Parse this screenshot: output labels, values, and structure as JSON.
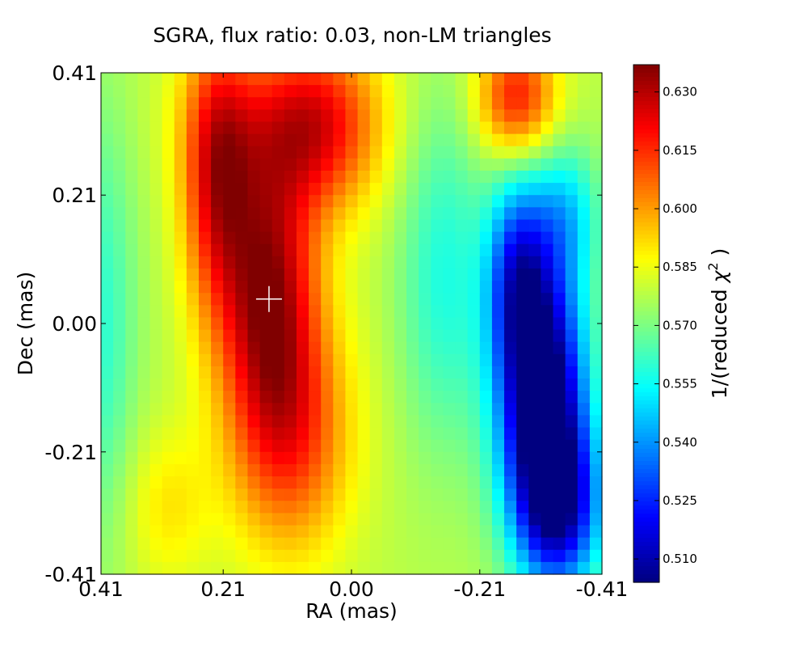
{
  "chart_data": {
    "type": "heatmap",
    "title": "SGRA, flux ratio: 0.03, non-LM triangles",
    "xlabel": "RA (mas)",
    "ylabel": "Dec (mas)",
    "xlim": [
      0.41,
      -0.41
    ],
    "ylim": [
      -0.41,
      0.41
    ],
    "x_ticks": [
      "0.41",
      "0.21",
      "0.00",
      "-0.21",
      "-0.41"
    ],
    "x_tick_values": [
      0.41,
      0.21,
      0.0,
      -0.21,
      -0.41
    ],
    "y_ticks": [
      "0.41",
      "0.21",
      "0.00",
      "-0.21",
      "-0.41"
    ],
    "y_tick_values": [
      0.41,
      0.21,
      0.0,
      -0.21,
      -0.41
    ],
    "colorbar": {
      "label": "1/(reduced χ² )",
      "label_main": "1/(reduced ",
      "label_symbol": "χ",
      "label_power": "2",
      "label_close": " )",
      "range": [
        0.504,
        0.637
      ],
      "tick_labels": [
        "0.630",
        "0.615",
        "0.600",
        "0.585",
        "0.570",
        "0.555",
        "0.540",
        "0.525",
        "0.510"
      ],
      "tick_values": [
        0.63,
        0.615,
        0.6,
        0.585,
        0.57,
        0.555,
        0.54,
        0.525,
        0.51
      ],
      "colormap": "jet"
    },
    "grid": false,
    "grid_size": [
      41,
      41
    ],
    "marker": {
      "type": "cross",
      "color": "#ffffff",
      "ra": 0.135,
      "dec": 0.04
    },
    "features": [
      {
        "ra": 0.135,
        "dec": 0.06,
        "sra": 0.055,
        "sdec": 0.16,
        "amp": 0.052
      },
      {
        "ra": 0.22,
        "dec": 0.24,
        "sra": 0.04,
        "sdec": 0.16,
        "amp": 0.042
      },
      {
        "ra": 0.1,
        "dec": -0.18,
        "sra": 0.07,
        "sdec": 0.14,
        "amp": 0.034
      },
      {
        "ra": 0.05,
        "dec": 0.32,
        "sra": 0.07,
        "sdec": 0.1,
        "amp": 0.032
      },
      {
        "ra": 0.12,
        "dec": 0.34,
        "sra": 0.1,
        "sdec": 0.1,
        "amp": 0.018
      },
      {
        "ra": -0.27,
        "dec": 0.37,
        "sra": 0.045,
        "sdec": 0.07,
        "amp": 0.04
      },
      {
        "ra": -0.31,
        "dec": -0.1,
        "sra": 0.05,
        "sdec": 0.15,
        "amp": -0.085
      },
      {
        "ra": -0.34,
        "dec": -0.3,
        "sra": 0.05,
        "sdec": 0.1,
        "amp": -0.06
      },
      {
        "ra": -0.27,
        "dec": 0.09,
        "sra": 0.035,
        "sdec": 0.11,
        "amp": -0.04
      },
      {
        "ra": -0.35,
        "dec": 0.18,
        "sra": 0.04,
        "sdec": 0.08,
        "amp": -0.025
      },
      {
        "ra": -0.15,
        "dec": 0.08,
        "sra": 0.05,
        "sdec": 0.2,
        "amp": -0.02
      },
      {
        "ra": 0.41,
        "dec": 0.0,
        "sra": 0.04,
        "sdec": 0.25,
        "amp": -0.018
      },
      {
        "ra": 0.3,
        "dec": -0.3,
        "sra": 0.05,
        "sdec": 0.09,
        "amp": 0.012
      }
    ],
    "base_value": 0.578
  }
}
